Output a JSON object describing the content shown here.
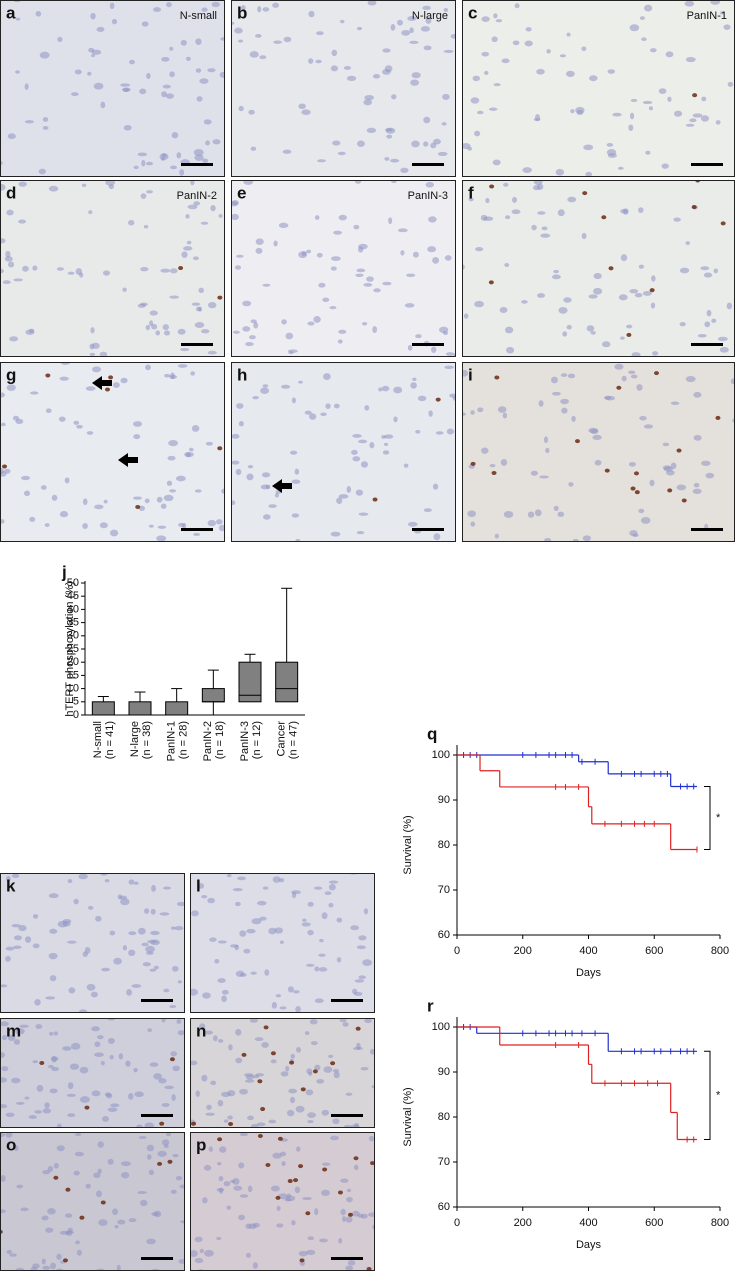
{
  "panels": [
    {
      "letter": "a",
      "label": "N-small"
    },
    {
      "letter": "b",
      "label": "N-large"
    },
    {
      "letter": "c",
      "label": "PanIN-1"
    },
    {
      "letter": "d",
      "label": "PanIN-2"
    },
    {
      "letter": "e",
      "label": "PanIN-3"
    },
    {
      "letter": "f"
    },
    {
      "letter": "g"
    },
    {
      "letter": "h"
    },
    {
      "letter": "i"
    },
    {
      "letter": "k"
    },
    {
      "letter": "l"
    },
    {
      "letter": "m"
    },
    {
      "letter": "n"
    },
    {
      "letter": "o"
    },
    {
      "letter": "p"
    }
  ],
  "chart_data": [
    {
      "type": "box",
      "letter": "j",
      "ylabel": "hTERT phosphorylation (%)",
      "categories": [
        "N-small",
        "N-large",
        "PanIN-1",
        "PanIN-2",
        "PanIN-3",
        "Cancer"
      ],
      "n_labels": [
        "(n = 41)",
        "(n = 38)",
        "(n = 28)",
        "(n = 18)",
        "(n = 12)",
        "(n = 47)"
      ],
      "boxes": [
        {
          "min": 0,
          "q1": 0,
          "median": 0,
          "q3": 5,
          "max": 7
        },
        {
          "min": 0,
          "q1": 0,
          "median": 0,
          "q3": 5,
          "max": 8.7
        },
        {
          "min": 0,
          "q1": 0,
          "median": 0,
          "q3": 5,
          "max": 10
        },
        {
          "min": 0,
          "q1": 5,
          "median": 5,
          "q3": 10,
          "max": 17
        },
        {
          "min": 5,
          "q1": 5,
          "median": 7.5,
          "q3": 20,
          "max": 23
        },
        {
          "min": 5,
          "q1": 5,
          "median": 10,
          "q3": 20,
          "max": 48
        }
      ],
      "color": "#808080",
      "ylim": [
        0,
        50
      ],
      "yticks": [
        0,
        5,
        10,
        15,
        20,
        25,
        30,
        35,
        40,
        45,
        50
      ]
    },
    {
      "type": "step",
      "letter": "q",
      "xlabel": "Days",
      "ylabel": "Survival (%)",
      "xlim": [
        0,
        800
      ],
      "xticks": [
        0,
        200,
        400,
        600,
        800
      ],
      "ylim": [
        60,
        100
      ],
      "yticks": [
        60,
        70,
        80,
        90,
        100
      ],
      "series": [
        {
          "color": "#1f2fd0",
          "x": [
            0,
            370,
            460,
            650
          ],
          "y": [
            100,
            98.5,
            95.8,
            93
          ],
          "censored": [
            20,
            40,
            60,
            200,
            240,
            280,
            300,
            330,
            350,
            380,
            420,
            500,
            540,
            560,
            600,
            620,
            640,
            680,
            700,
            720
          ]
        },
        {
          "color": "#e02020",
          "x": [
            0,
            70,
            130,
            400,
            410,
            650
          ],
          "y": [
            100,
            96.5,
            92.9,
            88.5,
            84.7,
            79
          ],
          "censored": [
            300,
            330,
            370,
            450,
            500,
            540,
            570,
            600,
            730
          ]
        }
      ],
      "end": 730,
      "annotation": "*"
    },
    {
      "type": "step",
      "letter": "r",
      "xlabel": "Days",
      "ylabel": "Survival (%)",
      "xlim": [
        0,
        800
      ],
      "xticks": [
        0,
        200,
        400,
        600,
        800
      ],
      "ylim": [
        60,
        100
      ],
      "yticks": [
        60,
        70,
        80,
        90,
        100
      ],
      "series": [
        {
          "color": "#1f2fd0",
          "x": [
            0,
            60,
            460
          ],
          "y": [
            100,
            98.6,
            94.6
          ],
          "censored": [
            20,
            40,
            200,
            240,
            280,
            300,
            330,
            350,
            380,
            420,
            500,
            540,
            560,
            600,
            620,
            650,
            680,
            700,
            720
          ]
        },
        {
          "color": "#e02020",
          "x": [
            0,
            130,
            400,
            410,
            650,
            670
          ],
          "y": [
            100,
            96,
            91.7,
            87.5,
            81,
            75
          ],
          "censored": [
            300,
            370,
            450,
            500,
            540,
            580,
            610,
            700,
            720
          ]
        }
      ],
      "end": 730,
      "annotation": "*"
    }
  ]
}
